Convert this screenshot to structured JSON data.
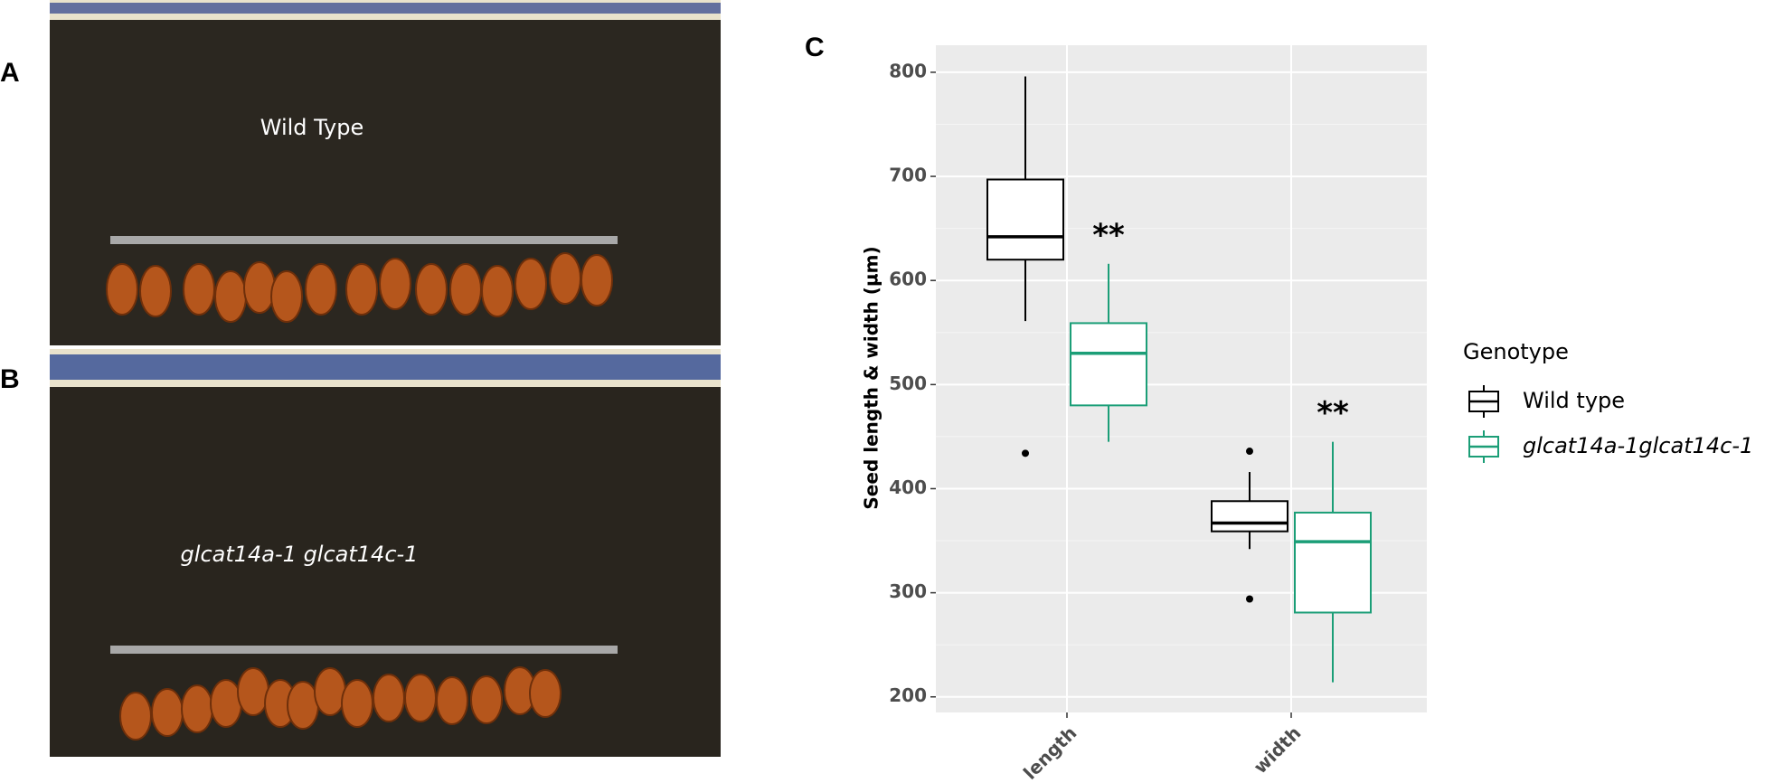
{
  "panels": {
    "a": {
      "letter": "A",
      "label": "Wild Type"
    },
    "b": {
      "letter": "B",
      "label": "glcat14a-1 glcat14c-1"
    }
  },
  "chart_data": {
    "type": "box",
    "letter": "C",
    "ylabel": "Seed length & width (µm)",
    "categories": [
      "length",
      "width"
    ],
    "series": [
      {
        "name": "Wild type",
        "color": "#000000",
        "values": [
          {
            "low": 561,
            "q1": 620,
            "median": 642,
            "q3": 697,
            "high": 796,
            "outliers": [
              434
            ]
          },
          {
            "low": 342,
            "q1": 359,
            "median": 367,
            "q3": 388,
            "high": 416,
            "outliers": [
              436,
              294
            ]
          }
        ]
      },
      {
        "name": "glcat14a-1glcat14c-1",
        "color": "#1b9e77",
        "values": [
          {
            "low": 445,
            "q1": 480,
            "median": 530,
            "q3": 559,
            "high": 616,
            "outliers": []
          },
          {
            "low": 214,
            "q1": 281,
            "median": 349,
            "q3": 377,
            "high": 445,
            "outliers": []
          }
        ]
      }
    ],
    "annotations": [
      "**",
      "**"
    ],
    "ylim": [
      185,
      826
    ],
    "yticks": [
      200,
      300,
      400,
      500,
      600,
      700,
      800
    ],
    "grid": true,
    "legend_title": "Genotype",
    "legend": "right"
  }
}
